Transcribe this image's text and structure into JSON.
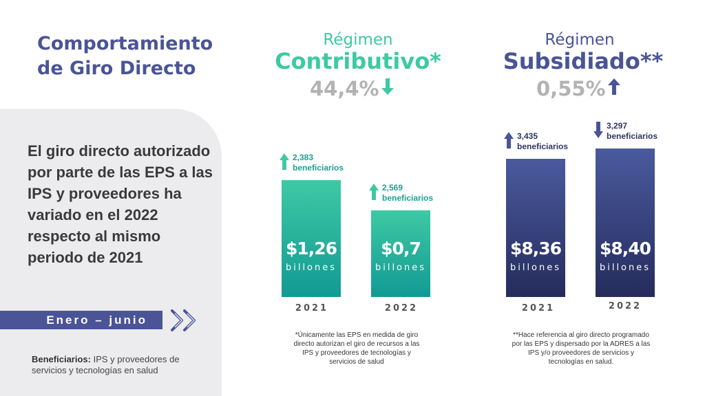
{
  "title": "Comportamiento\nde Giro Directo",
  "description": "El giro directo autorizado por parte de las EPS a las IPS y proveedores ha variado en el 2022 respecto al mismo periodo de 2021",
  "period": "Enero – junio",
  "beneficiaries_note": {
    "label": "Beneficiarios:",
    "text": " IPS y proveedores de servicios y tecnologías en salud"
  },
  "colors": {
    "brand_blue": "#4a5496",
    "teal": "#3ec9a4",
    "teal_dark": "#119a94",
    "navy_top": "#4a5a9e",
    "navy_bottom": "#252c5c",
    "gray_pct": "#b3b3b3"
  },
  "chart_data": [
    {
      "type": "bar",
      "regimen_label": "Régimen",
      "title": "Contributivo*",
      "change": "44,4%",
      "change_direction": "down",
      "categories": [
        "2021",
        "2022"
      ],
      "values": [
        1.26,
        0.7
      ],
      "value_labels": [
        "$1,26",
        "$0,7"
      ],
      "unit_label": "billones",
      "annotations": [
        {
          "direction": "up",
          "text": "2,383\nbeneficiarios"
        },
        {
          "direction": "up",
          "text": "2,569\nbeneficiarios"
        }
      ],
      "footnote": "*Únicamente las EPS en medida de giro\ndirecto autorizan el giro de recursos a las\nIPS y proveedores de tecnologías y\nservicios de salud"
    },
    {
      "type": "bar",
      "regimen_label": "Régimen",
      "title": "Subsidiado**",
      "change": "0,55%",
      "change_direction": "up",
      "categories": [
        "2021",
        "2022"
      ],
      "values": [
        8.36,
        8.4
      ],
      "value_labels": [
        "$8,36",
        "$8,40"
      ],
      "unit_label": "billones",
      "annotations": [
        {
          "direction": "up",
          "text": "3,435\nbeneficiarios"
        },
        {
          "direction": "down",
          "text": "3,297\nbeneficiarios"
        }
      ],
      "footnote": "**Hace referencia al giro directo programado\npor las EPS y dispersado por la ADRES a las\nIPS y/o proveedores de servicios y\ntecnologías en salud."
    }
  ]
}
